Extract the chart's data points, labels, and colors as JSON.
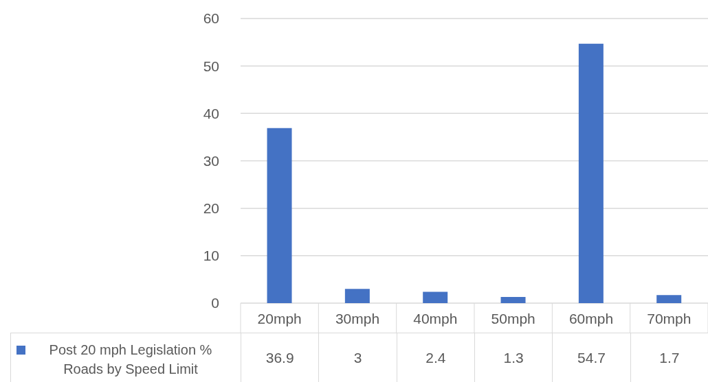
{
  "chart_data": {
    "type": "bar",
    "categories": [
      "20mph",
      "30mph",
      "40mph",
      "50mph",
      "60mph",
      "70mph"
    ],
    "series": [
      {
        "name": "Post 20 mph Legislation % Roads by Speed Limit",
        "color": "#4472c4",
        "values": [
          36.9,
          3,
          2.4,
          1.3,
          54.7,
          1.7
        ]
      }
    ],
    "ylim": [
      0,
      60
    ],
    "yticks": [
      0,
      10,
      20,
      30,
      40,
      50,
      60
    ],
    "grid": "y",
    "legend": "bottom",
    "data_labels": true
  }
}
